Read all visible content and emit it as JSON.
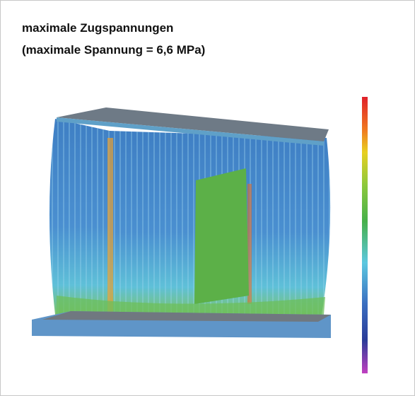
{
  "figure": {
    "title_lines": [
      "maximale Zugspannungen",
      "(maximale Spannung = 6,6 MPa)"
    ]
  }
}
